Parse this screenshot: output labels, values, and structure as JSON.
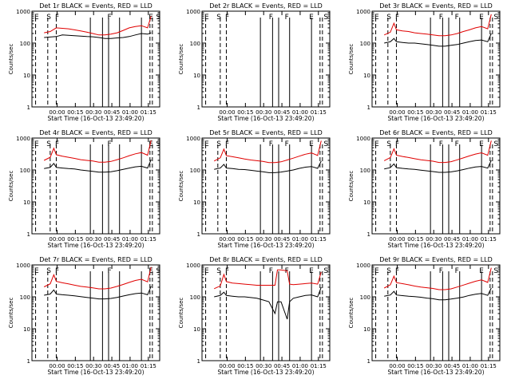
{
  "chart_data": [
    {
      "type": "line",
      "title": "Det 1r BLACK = Events, RED = LLD",
      "xlabel": "Start Time (16-Oct-13 23:49:20)",
      "ylabel": "Counts/sec",
      "y_scale": "log",
      "ylim": [
        1,
        1000
      ],
      "x_tick_labels": [
        "00:00",
        "00:15",
        "00:30",
        "00:45",
        "01:00",
        "01:15"
      ],
      "y_tick_labels": [
        "1",
        "10",
        "100",
        "1000"
      ],
      "region_labels": [
        "E",
        "S",
        "F",
        "F",
        "E",
        "S"
      ],
      "series": [
        {
          "color": "#000000",
          "x": [
            0,
            5,
            10,
            15,
            20,
            25,
            30,
            35,
            40,
            45,
            50,
            55,
            60,
            65,
            70,
            75,
            80,
            85,
            88
          ],
          "values": [
            150,
            155,
            160,
            180,
            175,
            170,
            165,
            160,
            158,
            150,
            140,
            140,
            145,
            150,
            160,
            180,
            200,
            190,
            210
          ]
        },
        {
          "color": "#e00000",
          "x": [
            0,
            5,
            10,
            15,
            20,
            25,
            30,
            35,
            40,
            45,
            50,
            55,
            60,
            65,
            70,
            75,
            80,
            85,
            88
          ],
          "values": [
            210,
            230,
            300,
            290,
            280,
            260,
            240,
            220,
            200,
            180,
            180,
            190,
            210,
            250,
            300,
            330,
            350,
            300,
            700
          ]
        }
      ]
    },
    {
      "type": "line",
      "title": "Det 2r BLACK = Events, RED = LLD",
      "xlabel": "Start Time (16-Oct-13 23:49:20)",
      "ylabel": "Counts/sec",
      "y_scale": "log",
      "ylim": [
        1,
        1000
      ],
      "x_tick_labels": [
        "00:00",
        "00:15",
        "00:30",
        "00:45",
        "01:00",
        "01:15"
      ],
      "y_tick_labels": [
        "1",
        "10",
        "100",
        "1000"
      ],
      "region_labels": [
        "E",
        "S",
        "F",
        "F",
        "F",
        "E",
        "S"
      ],
      "series": []
    },
    {
      "type": "line",
      "title": "Det 3r BLACK = Events, RED = LLD",
      "xlabel": "Start Time (16-Oct-13 23:49:20)",
      "ylabel": "Counts/sec",
      "y_scale": "log",
      "ylim": [
        1,
        1000
      ],
      "x_tick_labels": [
        "00:00",
        "00:15",
        "00:30",
        "00:45",
        "01:00",
        "01:15"
      ],
      "y_tick_labels": [
        "1",
        "10",
        "100",
        "1000"
      ],
      "region_labels": [
        "E",
        "S",
        "F",
        "F",
        "F",
        "E",
        "S"
      ],
      "series": [
        {
          "color": "#000000",
          "x": [
            0,
            5,
            8,
            10,
            15,
            20,
            25,
            30,
            35,
            40,
            45,
            50,
            55,
            60,
            65,
            70,
            75,
            80,
            85,
            88
          ],
          "values": [
            100,
            110,
            140,
            110,
            105,
            100,
            100,
            95,
            90,
            85,
            80,
            80,
            85,
            90,
            100,
            110,
            120,
            125,
            110,
            200
          ]
        },
        {
          "color": "#e00000",
          "x": [
            0,
            5,
            8,
            10,
            15,
            20,
            25,
            30,
            35,
            40,
            45,
            50,
            55,
            60,
            65,
            70,
            75,
            80,
            85,
            88
          ],
          "values": [
            180,
            220,
            420,
            260,
            240,
            230,
            210,
            200,
            190,
            180,
            170,
            170,
            180,
            200,
            230,
            260,
            300,
            330,
            280,
            800
          ]
        }
      ]
    },
    {
      "type": "line",
      "title": "Det 4r BLACK = Events, RED = LLD",
      "xlabel": "Start Time (16-Oct-13 23:49:20)",
      "ylabel": "Counts/sec",
      "y_scale": "log",
      "ylim": [
        1,
        1000
      ],
      "x_tick_labels": [
        "00:00",
        "00:15",
        "00:30",
        "00:45",
        "01:00",
        "01:15"
      ],
      "y_tick_labels": [
        "1",
        "10",
        "100",
        "1000"
      ],
      "region_labels": [
        "E",
        "S",
        "F",
        "F",
        "E",
        "S"
      ],
      "series": [
        {
          "color": "#000000",
          "x": [
            0,
            5,
            8,
            10,
            15,
            20,
            25,
            30,
            35,
            40,
            45,
            50,
            55,
            60,
            65,
            70,
            75,
            80,
            85,
            88
          ],
          "values": [
            110,
            120,
            160,
            120,
            115,
            110,
            108,
            100,
            95,
            90,
            85,
            85,
            88,
            95,
            105,
            115,
            125,
            130,
            115,
            210
          ]
        },
        {
          "color": "#e00000",
          "x": [
            0,
            5,
            8,
            10,
            15,
            20,
            25,
            30,
            35,
            40,
            45,
            50,
            55,
            60,
            65,
            70,
            75,
            80,
            85,
            88
          ],
          "values": [
            200,
            250,
            480,
            300,
            270,
            250,
            230,
            210,
            200,
            190,
            175,
            175,
            185,
            210,
            240,
            280,
            320,
            350,
            290,
            850
          ]
        }
      ]
    },
    {
      "type": "line",
      "title": "Det 5r BLACK = Events, RED = LLD",
      "xlabel": "Start Time (16-Oct-13 23:49:20)",
      "ylabel": "Counts/sec",
      "y_scale": "log",
      "ylim": [
        1,
        1000
      ],
      "x_tick_labels": [
        "00:00",
        "00:15",
        "00:30",
        "00:45",
        "01:00",
        "01:15"
      ],
      "y_tick_labels": [
        "1",
        "10",
        "100",
        "1000"
      ],
      "region_labels": [
        "E",
        "S",
        "F",
        "F",
        "F",
        "E",
        "S"
      ],
      "series": [
        {
          "color": "#000000",
          "x": [
            0,
            5,
            8,
            10,
            15,
            20,
            25,
            30,
            35,
            40,
            45,
            50,
            55,
            60,
            65,
            70,
            75,
            80,
            85,
            88
          ],
          "values": [
            105,
            115,
            150,
            115,
            110,
            105,
            103,
            98,
            92,
            88,
            82,
            82,
            86,
            92,
            100,
            112,
            122,
            128,
            112,
            190
          ]
        },
        {
          "color": "#e00000",
          "x": [
            0,
            5,
            8,
            10,
            15,
            20,
            25,
            30,
            35,
            40,
            45,
            50,
            55,
            60,
            65,
            70,
            75,
            80,
            85,
            88
          ],
          "values": [
            190,
            240,
            450,
            280,
            260,
            240,
            220,
            205,
            195,
            185,
            170,
            170,
            180,
            205,
            235,
            270,
            310,
            340,
            285,
            820
          ]
        }
      ]
    },
    {
      "type": "line",
      "title": "Det 6r BLACK = Events, RED = LLD",
      "xlabel": "Start Time (16-Oct-13 23:49:20)",
      "ylabel": "Counts/sec",
      "y_scale": "log",
      "ylim": [
        1,
        1000
      ],
      "x_tick_labels": [
        "00:00",
        "00:15",
        "00:30",
        "00:45",
        "01:00",
        "01:15"
      ],
      "y_tick_labels": [
        "1",
        "10",
        "100",
        "1000"
      ],
      "region_labels": [
        "E",
        "S",
        "F",
        "F",
        "F",
        "E",
        "S"
      ],
      "series": [
        {
          "color": "#000000",
          "x": [
            0,
            5,
            8,
            10,
            15,
            20,
            25,
            30,
            35,
            40,
            45,
            50,
            55,
            60,
            65,
            70,
            75,
            80,
            85,
            88
          ],
          "values": [
            108,
            118,
            155,
            118,
            112,
            108,
            105,
            99,
            94,
            89,
            84,
            84,
            87,
            94,
            103,
            114,
            124,
            129,
            114,
            200
          ]
        },
        {
          "color": "#e00000",
          "x": [
            0,
            5,
            8,
            10,
            15,
            20,
            25,
            30,
            35,
            40,
            45,
            50,
            55,
            60,
            65,
            70,
            75,
            80,
            85,
            88
          ],
          "values": [
            195,
            245,
            460,
            290,
            265,
            245,
            225,
            208,
            198,
            188,
            172,
            172,
            182,
            208,
            238,
            275,
            315,
            345,
            288,
            830
          ]
        }
      ]
    },
    {
      "type": "line",
      "title": "Det 7r BLACK = Events, RED = LLD",
      "xlabel": "Start Time (16-Oct-13 23:49:20)",
      "ylabel": "Counts/sec",
      "y_scale": "log",
      "ylim": [
        1,
        1000
      ],
      "x_tick_labels": [
        "00:00",
        "00:15",
        "00:30",
        "00:45",
        "01:00",
        "01:15"
      ],
      "y_tick_labels": [
        "1",
        "10",
        "100",
        "1000"
      ],
      "region_labels": [
        "E",
        "S",
        "F",
        "F",
        "E",
        "S"
      ],
      "series": [
        {
          "color": "#000000",
          "x": [
            0,
            5,
            8,
            10,
            15,
            20,
            25,
            30,
            35,
            40,
            45,
            50,
            55,
            60,
            65,
            70,
            75,
            80,
            85,
            88
          ],
          "values": [
            112,
            122,
            165,
            122,
            116,
            112,
            108,
            102,
            96,
            91,
            86,
            86,
            89,
            96,
            106,
            116,
            126,
            132,
            116,
            215
          ]
        },
        {
          "color": "#e00000",
          "x": [
            0,
            5,
            8,
            10,
            15,
            20,
            25,
            30,
            35,
            40,
            45,
            50,
            55,
            60,
            65,
            70,
            75,
            80,
            85,
            88
          ],
          "values": [
            205,
            255,
            490,
            305,
            275,
            255,
            232,
            212,
            202,
            192,
            178,
            178,
            188,
            212,
            244,
            284,
            325,
            355,
            295,
            860
          ]
        }
      ]
    },
    {
      "type": "line",
      "title": "Det 8r BLACK = Events, RED = LLD",
      "xlabel": "Start Time (16-Oct-13 23:49:20)",
      "ylabel": "Counts/sec",
      "y_scale": "log",
      "ylim": [
        1,
        1000
      ],
      "x_tick_labels": [
        "00:00",
        "00:15",
        "00:30",
        "00:45",
        "01:00",
        "01:15"
      ],
      "y_tick_labels": [
        "1",
        "10",
        "100",
        "1000"
      ],
      "region_labels": [
        "E",
        "S",
        "F",
        "F",
        "F",
        "E",
        "S"
      ],
      "series": [
        {
          "color": "#000000",
          "x": [
            0,
            5,
            8,
            10,
            15,
            20,
            25,
            30,
            35,
            40,
            45,
            50,
            52,
            55,
            60,
            62,
            65,
            70,
            75,
            80,
            85,
            88
          ],
          "values": [
            100,
            110,
            140,
            110,
            105,
            100,
            100,
            95,
            90,
            80,
            70,
            30,
            70,
            70,
            20,
            70,
            90,
            100,
            110,
            115,
            100,
            200
          ]
        },
        {
          "color": "#e00000",
          "x": [
            0,
            5,
            8,
            10,
            15,
            20,
            25,
            30,
            35,
            40,
            45,
            50,
            52,
            55,
            60,
            62,
            65,
            70,
            75,
            80,
            85,
            88
          ],
          "values": [
            180,
            220,
            500,
            300,
            270,
            260,
            250,
            240,
            230,
            230,
            230,
            230,
            700,
            700,
            650,
            250,
            240,
            250,
            260,
            270,
            250,
            600
          ]
        }
      ]
    },
    {
      "type": "line",
      "title": "Det 9r BLACK = Events, RED = LLD",
      "xlabel": "Start Time (16-Oct-13 23:49:20)",
      "ylabel": "Counts/sec",
      "y_scale": "log",
      "ylim": [
        1,
        1000
      ],
      "x_tick_labels": [
        "00:00",
        "00:15",
        "00:30",
        "00:45",
        "01:00",
        "01:15"
      ],
      "y_tick_labels": [
        "1",
        "10",
        "100",
        "1000"
      ],
      "region_labels": [
        "E",
        "S",
        "F",
        "F",
        "F",
        "E",
        "S"
      ],
      "series": [
        {
          "color": "#000000",
          "x": [
            0,
            5,
            8,
            10,
            15,
            20,
            25,
            30,
            35,
            40,
            45,
            50,
            55,
            60,
            65,
            70,
            75,
            80,
            85,
            88
          ],
          "values": [
            104,
            114,
            148,
            114,
            109,
            104,
            102,
            97,
            91,
            87,
            81,
            81,
            85,
            91,
            99,
            111,
            121,
            127,
            111,
            188
          ]
        },
        {
          "color": "#e00000",
          "x": [
            0,
            5,
            8,
            10,
            15,
            20,
            25,
            30,
            35,
            40,
            45,
            50,
            55,
            60,
            65,
            70,
            75,
            80,
            85,
            88
          ],
          "values": [
            188,
            238,
            445,
            278,
            258,
            238,
            218,
            203,
            193,
            183,
            168,
            168,
            178,
            203,
            233,
            268,
            308,
            338,
            283,
            815
          ]
        }
      ]
    }
  ]
}
